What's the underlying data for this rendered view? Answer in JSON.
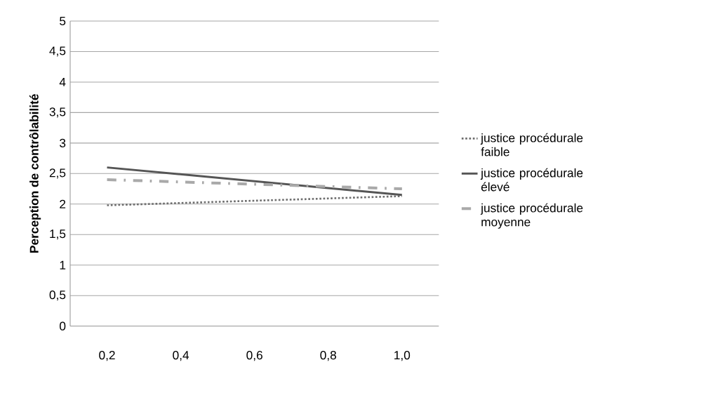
{
  "chart_data": {
    "type": "line",
    "ylabel": "Perception de contrôlabilité",
    "x": [
      0.2,
      1.0
    ],
    "xlim": [
      0.1,
      1.1
    ],
    "xticks": [
      {
        "value": 0.2,
        "label": "0,2"
      },
      {
        "value": 0.4,
        "label": "0,4"
      },
      {
        "value": 0.6,
        "label": "0,6"
      },
      {
        "value": 0.8,
        "label": "0,8"
      },
      {
        "value": 1.0,
        "label": "1,0"
      }
    ],
    "ylim": [
      0,
      5
    ],
    "yticks": [
      {
        "value": 0,
        "label": "0"
      },
      {
        "value": 0.5,
        "label": "0,5"
      },
      {
        "value": 1,
        "label": "1"
      },
      {
        "value": 1.5,
        "label": "1,5"
      },
      {
        "value": 2,
        "label": "2"
      },
      {
        "value": 2.5,
        "label": "2,5"
      },
      {
        "value": 3,
        "label": "3"
      },
      {
        "value": 3.5,
        "label": "3,5"
      },
      {
        "value": 4,
        "label": "4"
      },
      {
        "value": 4.5,
        "label": "4,5"
      },
      {
        "value": 5,
        "label": "5"
      }
    ],
    "grid": "y",
    "legend": "right",
    "marker": "none",
    "series": [
      {
        "name": "justice procédurale faible",
        "color": "#6e6e6e",
        "line_style": "dotted",
        "values": [
          1.98,
          2.13
        ]
      },
      {
        "name": "justice procédurale élevé",
        "color": "#555555",
        "line_style": "solid",
        "values": [
          2.6,
          2.15
        ]
      },
      {
        "name": "justice procédurale moyenne",
        "color": "#a9a9a9",
        "line_style": "dashdot",
        "values": [
          2.4,
          2.25
        ]
      }
    ]
  }
}
